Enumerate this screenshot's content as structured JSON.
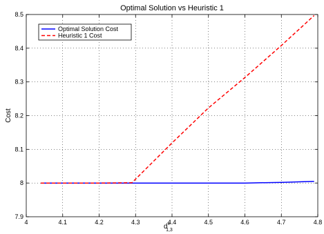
{
  "chart_data": {
    "type": "line",
    "title": "Optimal Solution vs Heuristic 1",
    "xlabel": {
      "main": "d",
      "sup": "v",
      "sub": "1,3"
    },
    "ylabel": "Cost",
    "xlim": [
      4,
      4.8
    ],
    "ylim": [
      7.9,
      8.5
    ],
    "xticks": [
      "4",
      "4.1",
      "4.2",
      "4.3",
      "4.4",
      "4.5",
      "4.6",
      "4.7",
      "4.8"
    ],
    "yticks": [
      "7.9",
      "8",
      "8.1",
      "8.2",
      "8.3",
      "8.4",
      "8.5"
    ],
    "grid": true,
    "legend_position": "top-left",
    "series": [
      {
        "name": "Optimal Solution Cost",
        "color": "#0000ff",
        "style": "solid",
        "x": [
          4.04,
          4.1,
          4.2,
          4.29,
          4.4,
          4.5,
          4.6,
          4.7,
          4.79
        ],
        "y": [
          8.0,
          8.0,
          8.0,
          8.0,
          8.0,
          8.0,
          8.0,
          8.002,
          8.005
        ]
      },
      {
        "name": "Heuristic 1 Cost",
        "color": "#ff0000",
        "style": "dashed",
        "x": [
          4.04,
          4.1,
          4.2,
          4.29,
          4.4,
          4.5,
          4.6,
          4.7,
          4.79
        ],
        "y": [
          8.0,
          8.0,
          8.0,
          8.001,
          8.119,
          8.223,
          8.313,
          8.408,
          8.497
        ]
      }
    ]
  }
}
